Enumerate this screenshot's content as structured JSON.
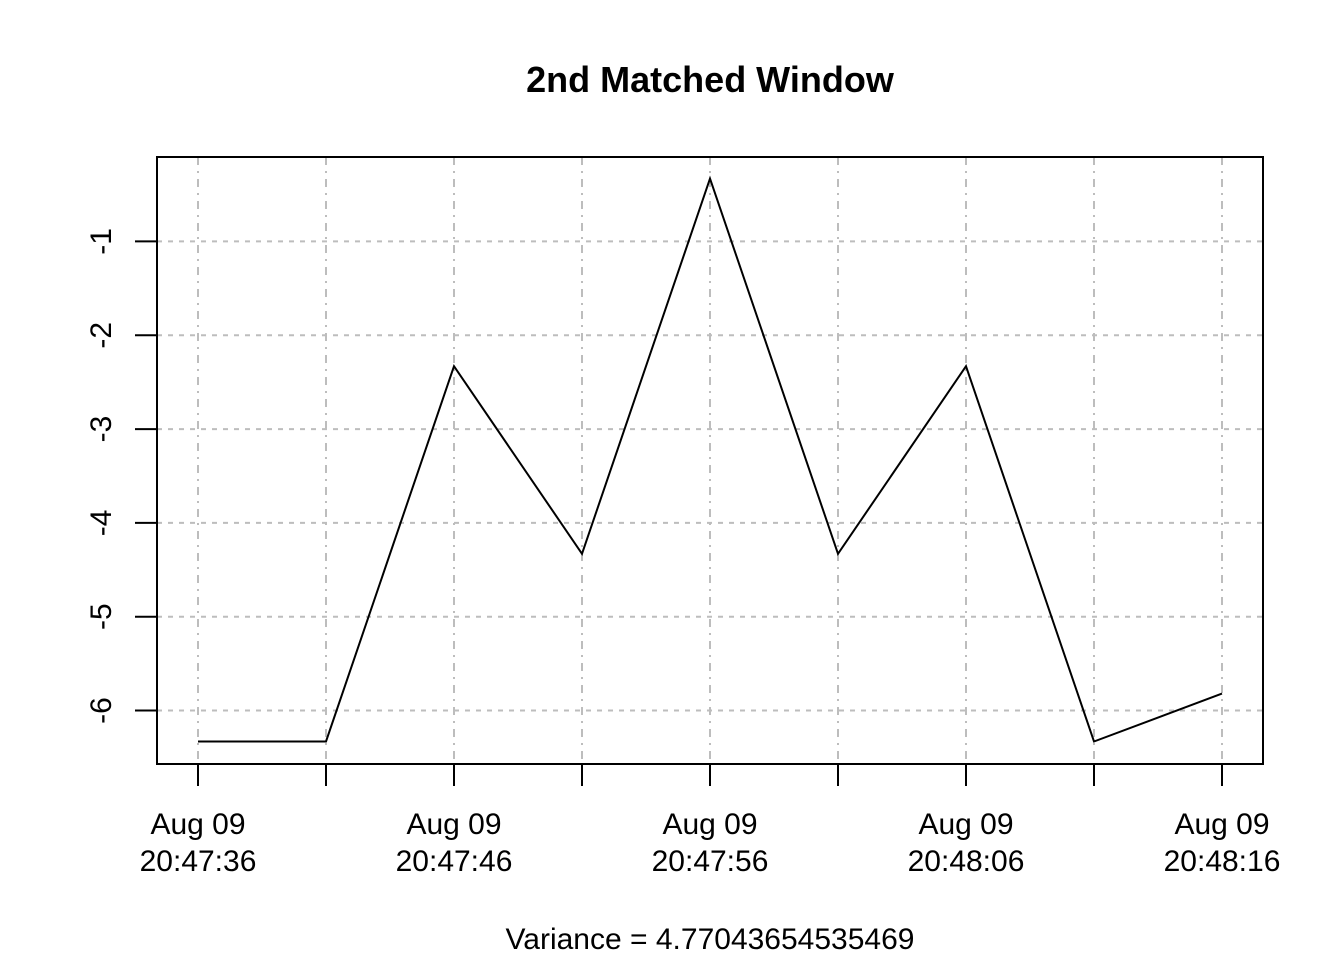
{
  "chart_data": {
    "type": "line",
    "title": "2nd Matched Window",
    "xlabel": "Variance = 4.77043654535469",
    "ylabel": "",
    "x": [
      "2023-08-09 20:47:36",
      "2023-08-09 20:47:41",
      "2023-08-09 20:47:46",
      "2023-08-09 20:47:51",
      "2023-08-09 20:47:56",
      "2023-08-09 20:48:01",
      "2023-08-09 20:48:06",
      "2023-08-09 20:48:11",
      "2023-08-09 20:48:16"
    ],
    "series": [
      {
        "values": [
          -6.33,
          -6.33,
          -2.33,
          -4.33,
          -0.33,
          -4.33,
          -2.33,
          -6.33,
          -5.82
        ]
      }
    ],
    "x_ticks": [
      {
        "line1": "Aug 09",
        "line2": "20:47:36"
      },
      {
        "line1": "",
        "line2": ""
      },
      {
        "line1": "Aug 09",
        "line2": "20:47:46"
      },
      {
        "line1": "",
        "line2": ""
      },
      {
        "line1": "Aug 09",
        "line2": "20:47:56"
      },
      {
        "line1": "",
        "line2": ""
      },
      {
        "line1": "Aug 09",
        "line2": "20:48:06"
      },
      {
        "line1": "",
        "line2": ""
      },
      {
        "line1": "Aug 09",
        "line2": "20:48:16"
      }
    ],
    "y_ticks": [
      -6,
      -5,
      -4,
      -3,
      -2,
      -1
    ],
    "ylim": [
      -6.57,
      -0.1
    ],
    "grid": true
  }
}
